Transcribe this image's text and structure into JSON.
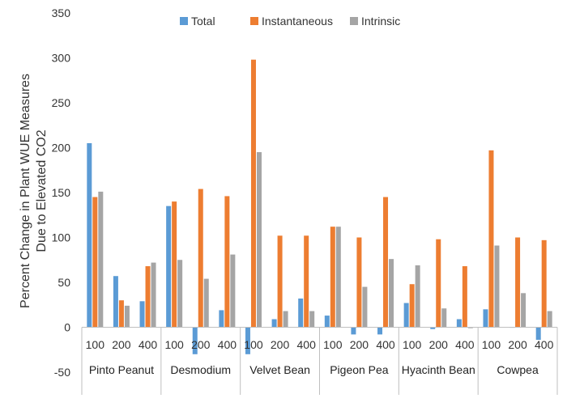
{
  "chart_data": {
    "type": "bar",
    "title": "",
    "xlabel": "",
    "ylabel": [
      "Percent Change in Plant WUE Measures",
      "Due to Elevated CO2"
    ],
    "ylim": [
      -50,
      350
    ],
    "yticks": [
      -50,
      0,
      50,
      100,
      150,
      200,
      250,
      300,
      350
    ],
    "grid": false,
    "legend_position": "top",
    "groups": [
      "Pinto Peanut",
      "Desmodium",
      "Velvet Bean",
      "Pigeon Pea",
      "Hyacinth Bean",
      "Cowpea"
    ],
    "levels": [
      "100",
      "200",
      "400"
    ],
    "series": [
      {
        "name": "Total",
        "color": "#5B9BD5",
        "values": [
          [
            205,
            57,
            29
          ],
          [
            135,
            -30,
            19
          ],
          [
            -30,
            9,
            32
          ],
          [
            13,
            -8,
            -8
          ],
          [
            27,
            -2,
            9
          ],
          [
            20,
            0,
            -14
          ]
        ]
      },
      {
        "name": "Instantaneous",
        "color": "#ED7D31",
        "values": [
          [
            145,
            30,
            68
          ],
          [
            140,
            154,
            146
          ],
          [
            298,
            102,
            102
          ],
          [
            112,
            100,
            145
          ],
          [
            48,
            98,
            68
          ],
          [
            197,
            100,
            97
          ]
        ]
      },
      {
        "name": "Intrinsic",
        "color": "#A5A5A5",
        "values": [
          [
            151,
            24,
            72
          ],
          [
            75,
            54,
            81
          ],
          [
            195,
            18,
            18
          ],
          [
            112,
            45,
            76
          ],
          [
            69,
            21,
            -1
          ],
          [
            91,
            38,
            18
          ]
        ]
      }
    ]
  }
}
